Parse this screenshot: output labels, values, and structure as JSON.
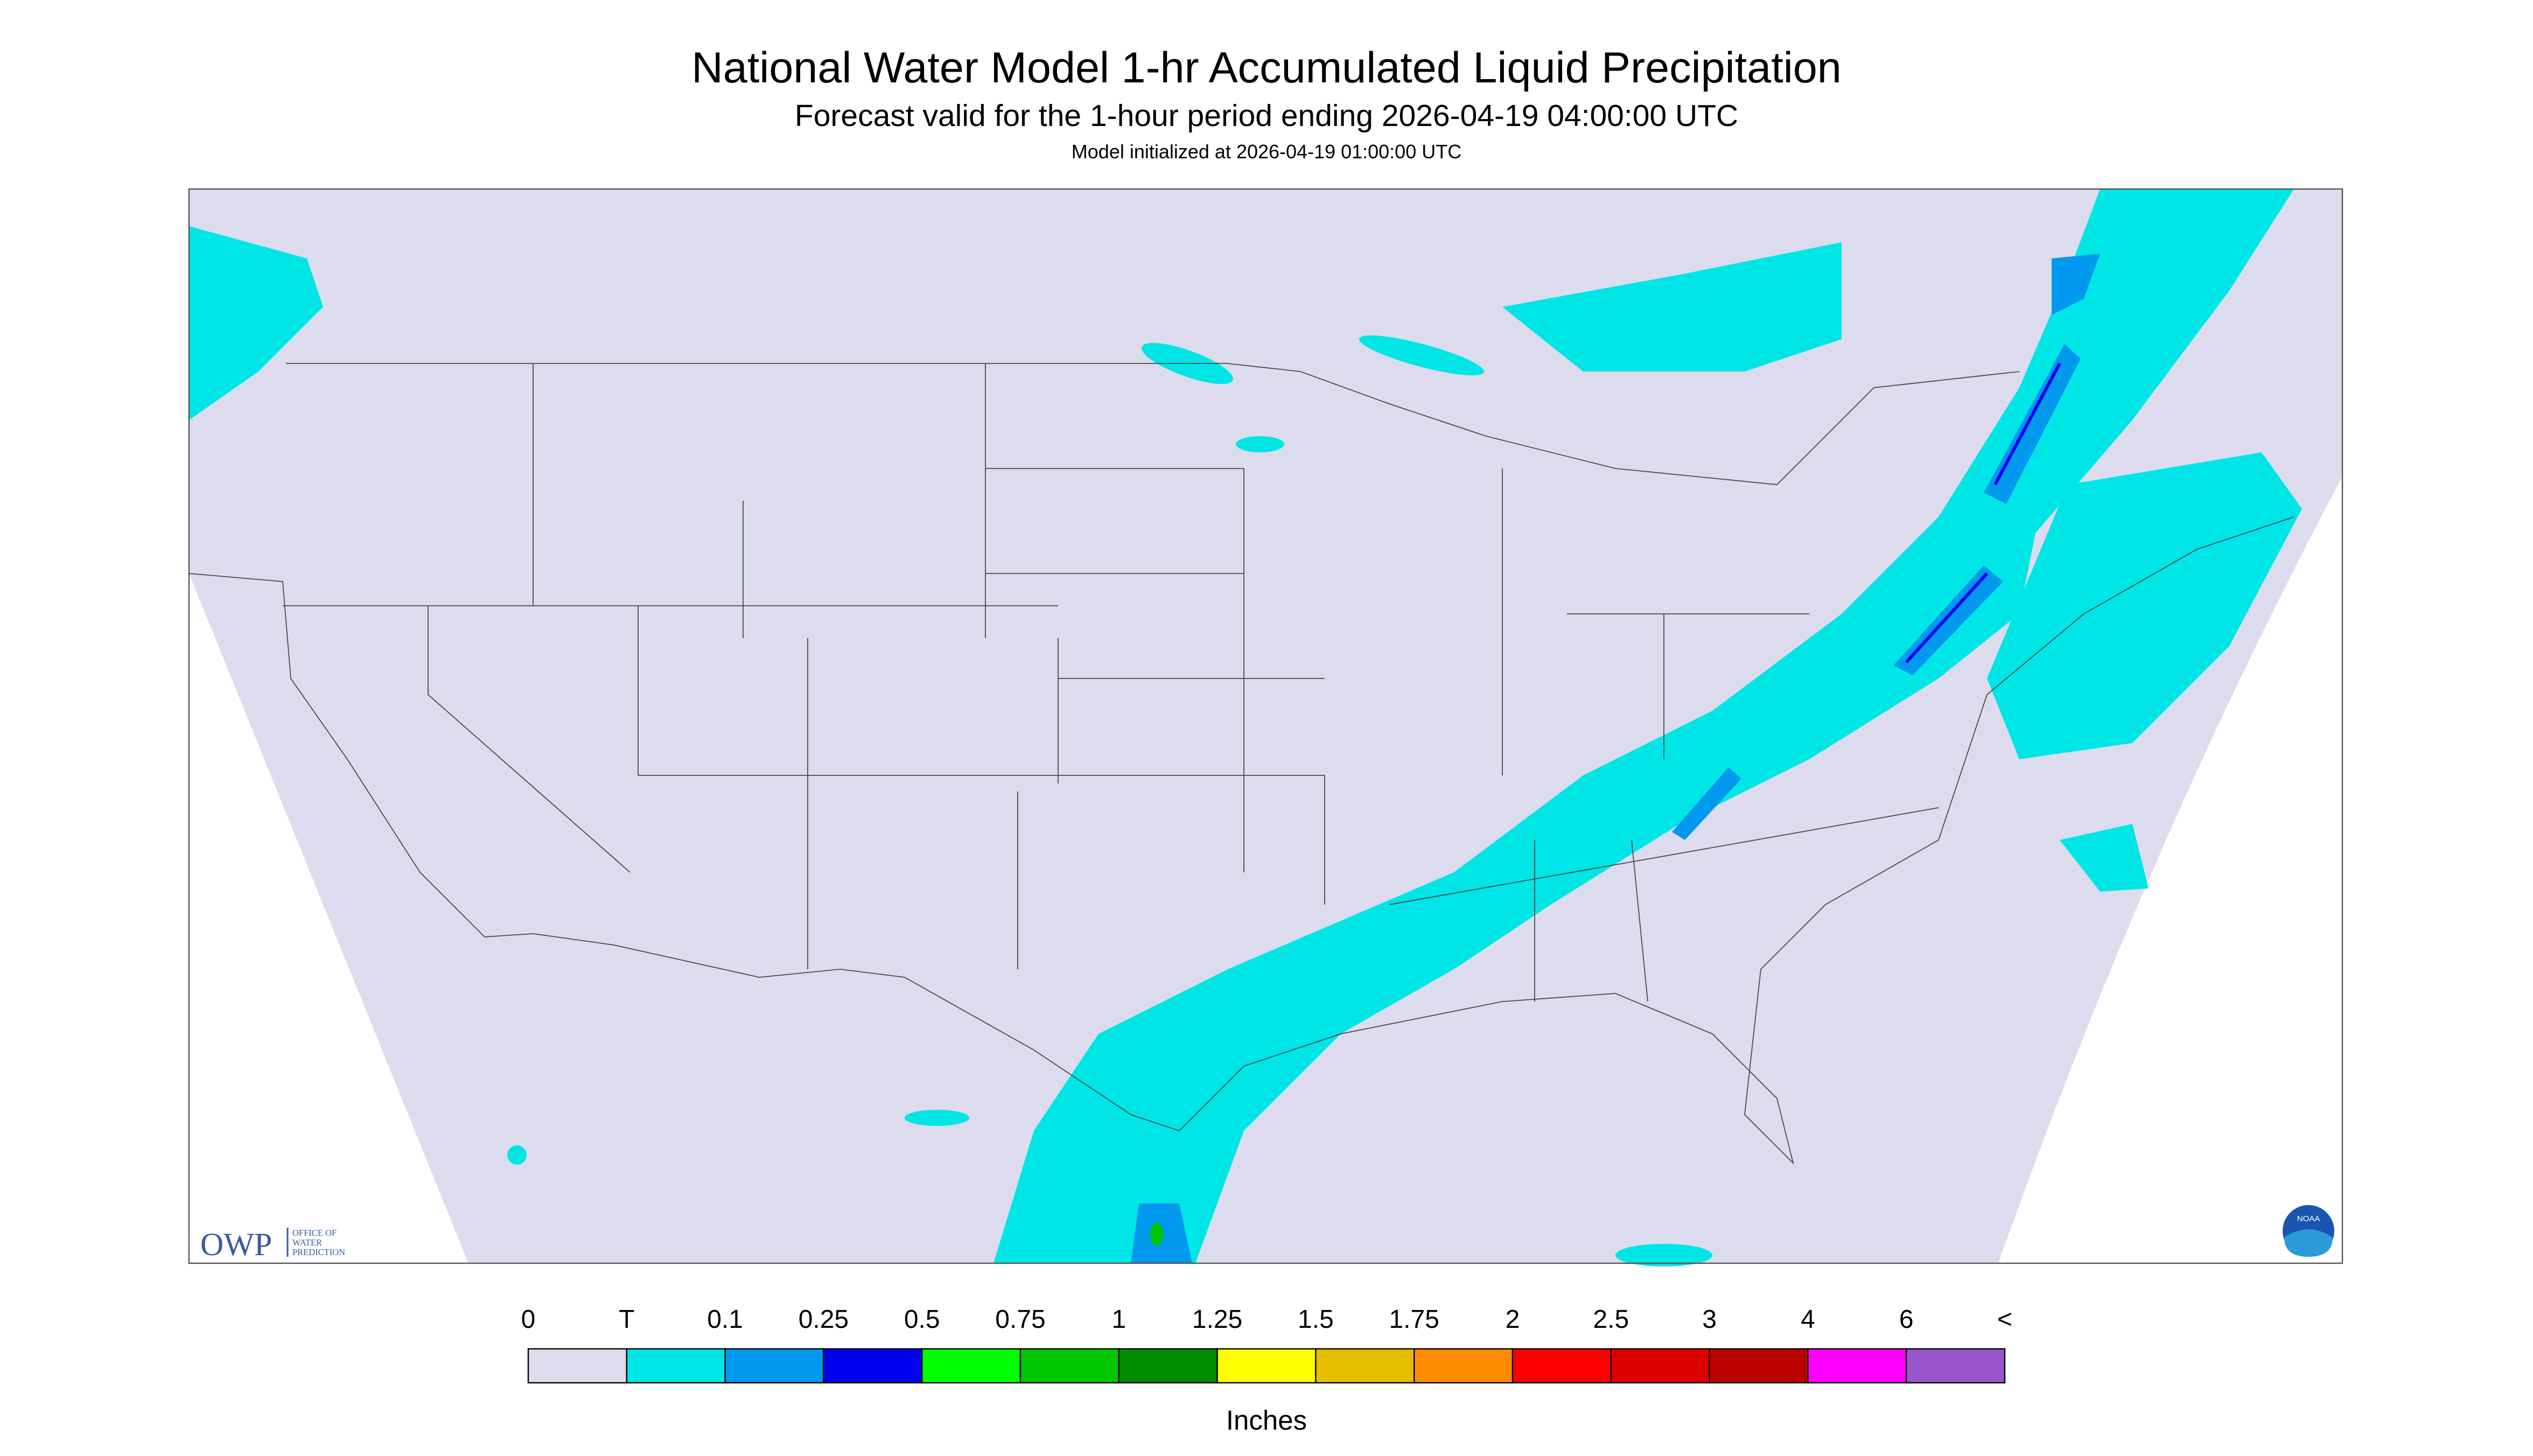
{
  "header": {
    "title": "National Water Model 1-hr Accumulated Liquid Precipitation",
    "subtitle": "Forecast valid for the 1-hour period ending 2026-04-19 04:00:00 UTC",
    "init": "Model initialized at 2026-04-19 01:00:00 UTC"
  },
  "logos": {
    "owp": "OWP",
    "owp_full": [
      "OFFICE OF",
      "WATER",
      "PREDICTION"
    ],
    "noaa": "NOAA"
  },
  "legend": {
    "labels": [
      "0",
      "T",
      "0.1",
      "0.25",
      "0.5",
      "0.75",
      "1",
      "1.25",
      "1.5",
      "1.75",
      "2",
      "2.5",
      "3",
      "4",
      "6",
      "<"
    ],
    "colors": [
      "#dcdcee",
      "#00e6e6",
      "#0099ee",
      "#0000f0",
      "#00ff00",
      "#00c800",
      "#008c00",
      "#ffff00",
      "#e6bf00",
      "#ff8c00",
      "#ff0000",
      "#dd0000",
      "#bb0000",
      "#ff00ff",
      "#9955cc"
    ],
    "unit": "Inches"
  }
}
